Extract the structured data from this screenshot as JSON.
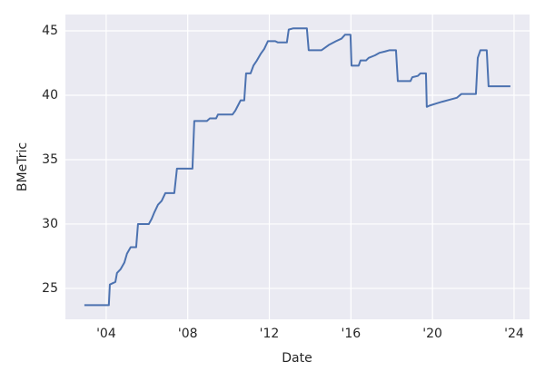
{
  "chart_data": {
    "type": "line",
    "xlabel": "Date",
    "ylabel": "BMeTric",
    "x": [
      2002.93,
      2004.13,
      2004.18,
      2004.45,
      2004.53,
      2004.71,
      2004.89,
      2005.02,
      2005.2,
      2005.47,
      2005.56,
      2006.09,
      2006.23,
      2006.36,
      2006.54,
      2006.72,
      2006.9,
      2007.34,
      2007.47,
      2008.23,
      2008.32,
      2008.94,
      2009.08,
      2009.39,
      2009.48,
      2010.19,
      2010.33,
      2010.46,
      2010.59,
      2010.77,
      2010.86,
      2011.08,
      2011.22,
      2011.39,
      2011.57,
      2011.75,
      2011.93,
      2012.29,
      2012.42,
      2012.86,
      2012.95,
      2013.18,
      2013.84,
      2013.93,
      2014.56,
      2014.74,
      2014.91,
      2015.27,
      2015.54,
      2015.71,
      2015.98,
      2016.03,
      2016.38,
      2016.47,
      2016.74,
      2016.87,
      2017.18,
      2017.41,
      2017.67,
      2017.9,
      2018.21,
      2018.3,
      2018.92,
      2019.01,
      2019.28,
      2019.41,
      2019.68,
      2019.72,
      2019.86,
      2020.17,
      2020.48,
      2020.84,
      2021.19,
      2021.42,
      2022.13,
      2022.22,
      2022.35,
      2022.66,
      2022.75,
      2023.82
    ],
    "series": [
      {
        "name": "BMeTric",
        "color": "#4c72b0",
        "values": [
          23.7,
          23.7,
          25.3,
          25.5,
          26.2,
          26.5,
          27.0,
          27.7,
          28.2,
          28.2,
          30.0,
          30.0,
          30.4,
          30.9,
          31.5,
          31.8,
          32.4,
          32.4,
          34.3,
          34.3,
          38.0,
          38.0,
          38.2,
          38.2,
          38.5,
          38.5,
          38.8,
          39.2,
          39.6,
          39.6,
          41.7,
          41.7,
          42.3,
          42.7,
          43.2,
          43.6,
          44.2,
          44.2,
          44.1,
          44.1,
          45.1,
          45.2,
          45.2,
          43.5,
          43.5,
          43.7,
          43.9,
          44.2,
          44.4,
          44.7,
          44.7,
          42.3,
          42.3,
          42.7,
          42.7,
          42.9,
          43.1,
          43.3,
          43.4,
          43.5,
          43.5,
          41.1,
          41.1,
          41.4,
          41.5,
          41.7,
          41.7,
          39.1,
          39.2,
          39.35,
          39.5,
          39.65,
          39.8,
          40.1,
          40.1,
          42.9,
          43.5,
          43.5,
          40.7,
          40.7
        ]
      }
    ],
    "xlim": [
      2002.0,
      2024.76
    ],
    "ylim": [
      22.6,
      46.27
    ],
    "xticks": [
      {
        "value": 2004,
        "label": "'04"
      },
      {
        "value": 2008,
        "label": "'08"
      },
      {
        "value": 2012,
        "label": "'12"
      },
      {
        "value": 2016,
        "label": "'16"
      },
      {
        "value": 2020,
        "label": "'20"
      },
      {
        "value": 2024,
        "label": "'24"
      }
    ],
    "yticks": [
      25,
      30,
      35,
      40,
      45
    ],
    "grid": true
  }
}
